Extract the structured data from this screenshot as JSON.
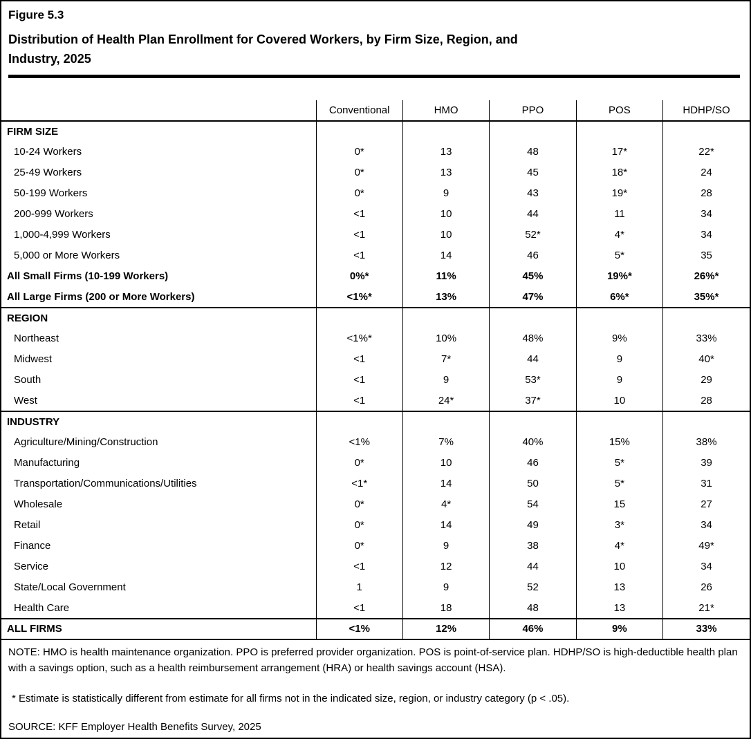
{
  "page": {
    "figure_label": "Figure 5.3",
    "title_line1": "Distribution of Health Plan Enrollment for Covered Workers, by Firm Size, Region, and",
    "title_line2": "Industry, 2025"
  },
  "chart_data": {
    "type": "table",
    "title": "Distribution of Health Plan Enrollment for Covered Workers, by Firm Size, Region, and Industry, 2025",
    "columns": [
      "Conventional",
      "HMO",
      "PPO",
      "POS",
      "HDHP/SO"
    ],
    "sections": [
      {
        "header": "FIRM SIZE",
        "rows": [
          {
            "label": "10-24 Workers",
            "bold": false,
            "values": [
              "0*",
              "13",
              "48",
              "17*",
              "22*"
            ]
          },
          {
            "label": "25-49 Workers",
            "bold": false,
            "values": [
              "0*",
              "13",
              "45",
              "18*",
              "24"
            ]
          },
          {
            "label": "50-199 Workers",
            "bold": false,
            "values": [
              "0*",
              "9",
              "43",
              "19*",
              "28"
            ]
          },
          {
            "label": "200-999 Workers",
            "bold": false,
            "values": [
              "<1",
              "10",
              "44",
              "11",
              "34"
            ]
          },
          {
            "label": "1,000-4,999 Workers",
            "bold": false,
            "values": [
              "<1",
              "10",
              "52*",
              "4*",
              "34"
            ]
          },
          {
            "label": "5,000 or More Workers",
            "bold": false,
            "values": [
              "<1",
              "14",
              "46",
              "5*",
              "35"
            ]
          },
          {
            "label": "All Small Firms (10-199 Workers)",
            "bold": true,
            "values": [
              "0%*",
              "11%",
              "45%",
              "19%*",
              "26%*"
            ]
          },
          {
            "label": "All Large Firms (200 or More Workers)",
            "bold": true,
            "values": [
              "<1%*",
              "13%",
              "47%",
              "6%*",
              "35%*"
            ]
          }
        ]
      },
      {
        "header": "REGION",
        "rows": [
          {
            "label": "Northeast",
            "bold": false,
            "values": [
              "<1%*",
              "10%",
              "48%",
              "9%",
              "33%"
            ]
          },
          {
            "label": "Midwest",
            "bold": false,
            "values": [
              "<1",
              "7*",
              "44",
              "9",
              "40*"
            ]
          },
          {
            "label": "South",
            "bold": false,
            "values": [
              "<1",
              "9",
              "53*",
              "9",
              "29"
            ]
          },
          {
            "label": "West",
            "bold": false,
            "values": [
              "<1",
              "24*",
              "37*",
              "10",
              "28"
            ]
          }
        ]
      },
      {
        "header": "INDUSTRY",
        "rows": [
          {
            "label": "Agriculture/Mining/Construction",
            "bold": false,
            "values": [
              "<1%",
              "7%",
              "40%",
              "15%",
              "38%"
            ]
          },
          {
            "label": "Manufacturing",
            "bold": false,
            "values": [
              "0*",
              "10",
              "46",
              "5*",
              "39"
            ]
          },
          {
            "label": "Transportation/Communications/Utilities",
            "bold": false,
            "values": [
              "<1*",
              "14",
              "50",
              "5*",
              "31"
            ]
          },
          {
            "label": "Wholesale",
            "bold": false,
            "values": [
              "0*",
              "4*",
              "54",
              "15",
              "27"
            ]
          },
          {
            "label": "Retail",
            "bold": false,
            "values": [
              "0*",
              "14",
              "49",
              "3*",
              "34"
            ]
          },
          {
            "label": "Finance",
            "bold": false,
            "values": [
              "0*",
              "9",
              "38",
              "4*",
              "49*"
            ]
          },
          {
            "label": "Service",
            "bold": false,
            "values": [
              "<1",
              "12",
              "44",
              "10",
              "34"
            ]
          },
          {
            "label": "State/Local Government",
            "bold": false,
            "values": [
              "1",
              "9",
              "52",
              "13",
              "26"
            ]
          },
          {
            "label": "Health Care",
            "bold": false,
            "values": [
              "<1",
              "18",
              "48",
              "13",
              "21*"
            ]
          }
        ]
      }
    ],
    "total_row": {
      "label": "ALL FIRMS",
      "bold": true,
      "values": [
        "<1%",
        "12%",
        "46%",
        "9%",
        "33%"
      ]
    }
  },
  "notes": {
    "note": "NOTE: HMO is health maintenance organization. PPO is preferred provider organization. POS is point-of-service plan. HDHP/SO is high-deductible health plan with a savings option, such as a health reimbursement arrangement (HRA) or health savings account (HSA).",
    "asterisk": "* Estimate is statistically different from estimate for all firms not in the indicated size, region, or industry category (p < .05).",
    "source": "SOURCE: KFF Employer Health Benefits Survey, 2025"
  }
}
